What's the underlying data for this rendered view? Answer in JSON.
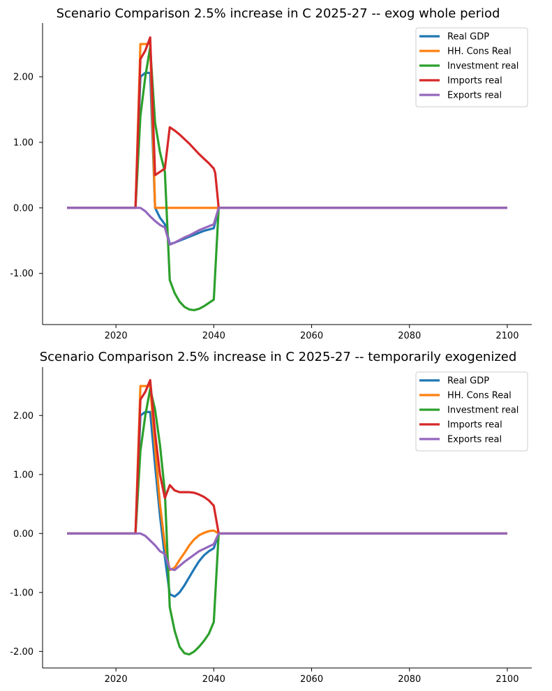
{
  "chart_data": [
    {
      "type": "line",
      "title": "Scenario Comparison 2.5% increase in C 2025-27 -- exog whole period",
      "xlabel": "",
      "ylabel": "",
      "xlim": [
        2005,
        2105
      ],
      "ylim": [
        -1.78,
        2.82
      ],
      "xticks": [
        2020,
        2040,
        2060,
        2080,
        2100
      ],
      "yticks": [
        -1.0,
        0.0,
        1.0,
        2.0
      ],
      "ytick_labels": [
        "-1.00",
        "0.00",
        "1.00",
        "2.00"
      ],
      "grid": false,
      "legend_position": "top-right",
      "series": [
        {
          "name": "Real GDP",
          "color": "#1f77b4",
          "points": [
            [
              2010,
              0
            ],
            [
              2024,
              0
            ],
            [
              2025,
              2.0
            ],
            [
              2026,
              2.06
            ],
            [
              2027,
              2.06
            ],
            [
              2028,
              0
            ],
            [
              2029,
              -0.15
            ],
            [
              2030,
              -0.25
            ],
            [
              2031,
              -0.55
            ],
            [
              2032,
              -0.53
            ],
            [
              2033,
              -0.5
            ],
            [
              2034,
              -0.47
            ],
            [
              2035,
              -0.44
            ],
            [
              2036,
              -0.41
            ],
            [
              2037,
              -0.38
            ],
            [
              2038,
              -0.35
            ],
            [
              2039,
              -0.33
            ],
            [
              2040,
              -0.31
            ],
            [
              2041,
              0
            ],
            [
              2100,
              0
            ]
          ]
        },
        {
          "name": "HH. Cons Real",
          "color": "#ff7f0e",
          "points": [
            [
              2010,
              0
            ],
            [
              2024,
              0
            ],
            [
              2025,
              2.5
            ],
            [
              2026,
              2.5
            ],
            [
              2027,
              2.5
            ],
            [
              2028,
              0
            ],
            [
              2100,
              0
            ]
          ]
        },
        {
          "name": "Investment real",
          "color": "#2ca02c",
          "points": [
            [
              2010,
              0
            ],
            [
              2024,
              0
            ],
            [
              2025,
              1.4
            ],
            [
              2026,
              2.0
            ],
            [
              2027,
              2.45
            ],
            [
              2028,
              1.3
            ],
            [
              2029,
              0.85
            ],
            [
              2030,
              0.55
            ],
            [
              2031,
              -1.1
            ],
            [
              2032,
              -1.3
            ],
            [
              2033,
              -1.43
            ],
            [
              2034,
              -1.51
            ],
            [
              2035,
              -1.55
            ],
            [
              2036,
              -1.56
            ],
            [
              2037,
              -1.54
            ],
            [
              2038,
              -1.5
            ],
            [
              2039,
              -1.45
            ],
            [
              2040,
              -1.4
            ],
            [
              2041,
              0
            ],
            [
              2100,
              0
            ]
          ]
        },
        {
          "name": "Imports real",
          "color": "#d62728",
          "points": [
            [
              2010,
              0
            ],
            [
              2024,
              0
            ],
            [
              2025,
              2.27
            ],
            [
              2026,
              2.4
            ],
            [
              2027,
              2.6
            ],
            [
              2028,
              0.5
            ],
            [
              2029,
              0.55
            ],
            [
              2030,
              0.6
            ],
            [
              2031,
              1.23
            ],
            [
              2032,
              1.18
            ],
            [
              2033,
              1.12
            ],
            [
              2034,
              1.05
            ],
            [
              2035,
              0.98
            ],
            [
              2036,
              0.9
            ],
            [
              2037,
              0.82
            ],
            [
              2038,
              0.75
            ],
            [
              2039,
              0.68
            ],
            [
              2040,
              0.6
            ],
            [
              2040.3,
              0.53
            ],
            [
              2041,
              0
            ],
            [
              2100,
              0
            ]
          ]
        },
        {
          "name": "Exports real",
          "color": "#9467bd",
          "points": [
            [
              2010,
              0
            ],
            [
              2024,
              0
            ],
            [
              2025,
              0
            ],
            [
              2026,
              -0.05
            ],
            [
              2027,
              -0.13
            ],
            [
              2028,
              -0.2
            ],
            [
              2029,
              -0.26
            ],
            [
              2030,
              -0.3
            ],
            [
              2031,
              -0.56
            ],
            [
              2032,
              -0.53
            ],
            [
              2033,
              -0.49
            ],
            [
              2034,
              -0.45
            ],
            [
              2035,
              -0.42
            ],
            [
              2036,
              -0.38
            ],
            [
              2037,
              -0.34
            ],
            [
              2038,
              -0.31
            ],
            [
              2039,
              -0.28
            ],
            [
              2040,
              -0.25
            ],
            [
              2041,
              0
            ],
            [
              2100,
              0
            ]
          ]
        }
      ]
    },
    {
      "type": "line",
      "title": "Scenario Comparison 2.5% increase in C 2025-27 -- temporarily exogenized",
      "xlabel": "",
      "ylabel": "",
      "xlim": [
        2005,
        2105
      ],
      "ylim": [
        -2.28,
        2.82
      ],
      "xticks": [
        2020,
        2040,
        2060,
        2080,
        2100
      ],
      "yticks": [
        -2.0,
        -1.0,
        0.0,
        1.0,
        2.0
      ],
      "ytick_labels": [
        "-2.00",
        "-1.00",
        "0.00",
        "1.00",
        "2.00"
      ],
      "grid": false,
      "legend_position": "top-right",
      "series": [
        {
          "name": "Real GDP",
          "color": "#1f77b4",
          "points": [
            [
              2010,
              0
            ],
            [
              2024,
              0
            ],
            [
              2025,
              2.0
            ],
            [
              2026,
              2.06
            ],
            [
              2027,
              2.06
            ],
            [
              2028,
              1.15
            ],
            [
              2029,
              0.3
            ],
            [
              2030,
              -0.4
            ],
            [
              2031,
              -1.03
            ],
            [
              2032,
              -1.07
            ],
            [
              2033,
              -1.0
            ],
            [
              2034,
              -0.88
            ],
            [
              2035,
              -0.74
            ],
            [
              2036,
              -0.6
            ],
            [
              2037,
              -0.47
            ],
            [
              2038,
              -0.37
            ],
            [
              2039,
              -0.3
            ],
            [
              2040,
              -0.25
            ],
            [
              2041,
              0
            ],
            [
              2100,
              0
            ]
          ]
        },
        {
          "name": "HH. Cons Real",
          "color": "#ff7f0e",
          "points": [
            [
              2010,
              0
            ],
            [
              2024,
              0
            ],
            [
              2025,
              2.5
            ],
            [
              2026,
              2.5
            ],
            [
              2027,
              2.5
            ],
            [
              2028,
              1.45
            ],
            [
              2029,
              0.5
            ],
            [
              2030,
              -0.2
            ],
            [
              2031,
              -0.62
            ],
            [
              2032,
              -0.58
            ],
            [
              2033,
              -0.45
            ],
            [
              2034,
              -0.33
            ],
            [
              2035,
              -0.2
            ],
            [
              2036,
              -0.1
            ],
            [
              2037,
              -0.03
            ],
            [
              2038,
              0.01
            ],
            [
              2039,
              0.04
            ],
            [
              2040,
              0.05
            ],
            [
              2041,
              0
            ],
            [
              2100,
              0
            ]
          ]
        },
        {
          "name": "Investment real",
          "color": "#2ca02c",
          "points": [
            [
              2010,
              0
            ],
            [
              2024,
              0
            ],
            [
              2025,
              1.4
            ],
            [
              2026,
              2.0
            ],
            [
              2027,
              2.45
            ],
            [
              2028,
              2.1
            ],
            [
              2029,
              1.5
            ],
            [
              2030,
              0.7
            ],
            [
              2031,
              -1.25
            ],
            [
              2032,
              -1.65
            ],
            [
              2033,
              -1.92
            ],
            [
              2034,
              -2.03
            ],
            [
              2035,
              -2.05
            ],
            [
              2036,
              -2.0
            ],
            [
              2037,
              -1.92
            ],
            [
              2038,
              -1.82
            ],
            [
              2039,
              -1.7
            ],
            [
              2040,
              -1.5
            ],
            [
              2041,
              0
            ],
            [
              2100,
              0
            ]
          ]
        },
        {
          "name": "Imports real",
          "color": "#d62728",
          "points": [
            [
              2010,
              0
            ],
            [
              2024,
              0
            ],
            [
              2025,
              2.27
            ],
            [
              2026,
              2.4
            ],
            [
              2027,
              2.6
            ],
            [
              2028,
              1.7
            ],
            [
              2029,
              1.0
            ],
            [
              2030,
              0.6
            ],
            [
              2031,
              0.82
            ],
            [
              2032,
              0.73
            ],
            [
              2033,
              0.7
            ],
            [
              2034,
              0.7
            ],
            [
              2035,
              0.7
            ],
            [
              2036,
              0.69
            ],
            [
              2037,
              0.66
            ],
            [
              2038,
              0.62
            ],
            [
              2039,
              0.56
            ],
            [
              2040,
              0.47
            ],
            [
              2041,
              0
            ],
            [
              2100,
              0
            ]
          ]
        },
        {
          "name": "Exports real",
          "color": "#9467bd",
          "points": [
            [
              2010,
              0
            ],
            [
              2024,
              0
            ],
            [
              2025,
              0
            ],
            [
              2026,
              -0.04
            ],
            [
              2027,
              -0.12
            ],
            [
              2028,
              -0.2
            ],
            [
              2029,
              -0.3
            ],
            [
              2030,
              -0.35
            ],
            [
              2031,
              -0.6
            ],
            [
              2032,
              -0.62
            ],
            [
              2033,
              -0.55
            ],
            [
              2034,
              -0.48
            ],
            [
              2035,
              -0.42
            ],
            [
              2036,
              -0.36
            ],
            [
              2037,
              -0.3
            ],
            [
              2038,
              -0.26
            ],
            [
              2039,
              -0.22
            ],
            [
              2040,
              -0.18
            ],
            [
              2041,
              0
            ],
            [
              2100,
              0
            ]
          ]
        }
      ]
    }
  ]
}
